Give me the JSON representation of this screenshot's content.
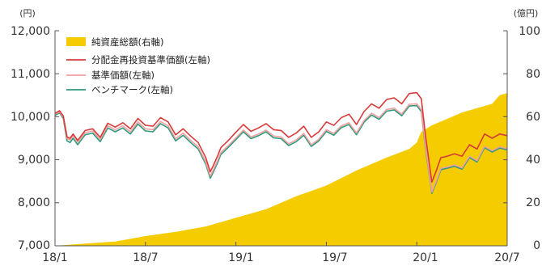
{
  "chart_data": {
    "type": "line",
    "title": "",
    "left_axis": {
      "unit": "(円)",
      "range": [
        7000,
        12000
      ],
      "ticks": [
        "12,000",
        "11,000",
        "10,000",
        "9,000",
        "8,000",
        "7,000"
      ]
    },
    "right_axis": {
      "unit": "(億円)",
      "range": [
        0,
        100
      ],
      "ticks": [
        "100",
        "80",
        "60",
        "40",
        "20",
        "0"
      ]
    },
    "x_ticks": [
      "18/1",
      "18/7",
      "19/1",
      "19/7",
      "20/1",
      "20/7"
    ],
    "x_range": [
      "2018-01",
      "2020-07"
    ],
    "legend_placement": "top-left",
    "grid": false,
    "legend": [
      {
        "label": "純資産総額(右軸)",
        "color": "#f5cc00",
        "kind": "box"
      },
      {
        "label": "分配金再投資基準価額(左軸)",
        "color": "#d83a3a",
        "kind": "line"
      },
      {
        "label": "基準価額(左軸)",
        "color": "#f0a0a0",
        "kind": "line"
      },
      {
        "label": "ベンチマーク(左軸)",
        "color": "#2e9a7e",
        "kind": "line"
      }
    ],
    "series": [
      {
        "name": "分配金再投資基準価額(左軸)",
        "axis": "left",
        "x": [
          0,
          0.3,
          0.55,
          0.8,
          1.0,
          1.2,
          1.5,
          2.0,
          2.5,
          3.0,
          3.5,
          4.0,
          4.5,
          5.0,
          5.5,
          6.0,
          6.5,
          7.0,
          7.5,
          8.0,
          8.5,
          9.0,
          9.5,
          10.0,
          10.3,
          10.5,
          10.8,
          11.0,
          11.5,
          12.0,
          12.5,
          13.0,
          13.5,
          14.0,
          14.5,
          15.0,
          15.5,
          16.0,
          16.5,
          17.0,
          17.5,
          18.0,
          18.5,
          19.0,
          19.5,
          20.0,
          20.5,
          21.0,
          21.5,
          22.0,
          22.5,
          23.0,
          23.5,
          24.0,
          24.3,
          24.6,
          25.0,
          25.3,
          25.6,
          26.0,
          26.5,
          27.0,
          27.5,
          28.0,
          28.5,
          29.0,
          29.5,
          30.0
        ],
        "y": [
          10080,
          10140,
          10020,
          9530,
          9500,
          9600,
          9450,
          9680,
          9720,
          9520,
          9850,
          9760,
          9860,
          9720,
          9960,
          9800,
          9780,
          9980,
          9880,
          9580,
          9720,
          9550,
          9400,
          9050,
          8720,
          8860,
          9100,
          9280,
          9450,
          9640,
          9820,
          9660,
          9740,
          9840,
          9700,
          9680,
          9520,
          9620,
          9780,
          9520,
          9650,
          9880,
          9800,
          9980,
          10060,
          9820,
          10120,
          10300,
          10200,
          10400,
          10440,
          10300,
          10540,
          10560,
          10420,
          9500,
          8480,
          8750,
          9050,
          9080,
          9140,
          9080,
          9350,
          9250,
          9600,
          9500,
          9600,
          9560
        ]
      },
      {
        "name": "基準価額(左軸)",
        "axis": "left",
        "x": [
          0,
          0.3,
          0.55,
          0.8,
          1.0,
          1.2,
          1.5,
          2.0,
          2.5,
          3.0,
          3.5,
          4.0,
          4.5,
          5.0,
          5.5,
          6.0,
          6.5,
          7.0,
          7.5,
          8.0,
          8.5,
          9.0,
          9.5,
          10.0,
          10.3,
          10.5,
          10.8,
          11.0,
          11.5,
          12.0,
          12.5,
          13.0,
          13.5,
          14.0,
          14.5,
          15.0,
          15.5,
          16.0,
          16.5,
          17.0,
          17.5,
          18.0,
          18.5,
          19.0,
          19.5,
          20.0,
          20.5,
          21.0,
          21.5,
          22.0,
          22.5,
          23.0,
          23.5,
          24.0,
          24.3,
          24.6,
          25.0,
          25.3,
          25.6,
          26.0,
          26.5,
          27.0,
          27.5,
          28.0,
          28.5,
          29.0,
          29.5,
          30.0
        ],
        "y": [
          10060,
          10110,
          9990,
          9500,
          9460,
          9560,
          9410,
          9630,
          9670,
          9470,
          9790,
          9700,
          9790,
          9650,
          9880,
          9720,
          9700,
          9890,
          9790,
          9490,
          9620,
          9450,
          9300,
          8950,
          8620,
          8760,
          8990,
          9170,
          9330,
          9510,
          9690,
          9530,
          9600,
          9690,
          9550,
          9530,
          9370,
          9460,
          9610,
          9350,
          9480,
          9700,
          9610,
          9790,
          9860,
          9620,
          9910,
          10080,
          9980,
          10170,
          10200,
          10060,
          10290,
          10300,
          10160,
          9250,
          8250,
          8510,
          8800,
          8830,
          8880,
          8810,
          9080,
          8980,
          9310,
          9210,
          9300,
          9260
        ]
      },
      {
        "name": "ベンチマーク(左軸)",
        "axis": "left",
        "x": [
          0,
          0.3,
          0.55,
          0.8,
          1.0,
          1.2,
          1.5,
          2.0,
          2.5,
          3.0,
          3.5,
          4.0,
          4.5,
          5.0,
          5.5,
          6.0,
          6.5,
          7.0,
          7.5,
          8.0,
          8.5,
          9.0,
          9.5,
          10.0,
          10.3,
          10.5,
          10.8,
          11.0,
          11.5,
          12.0,
          12.5,
          13.0,
          13.5,
          14.0,
          14.5,
          15.0,
          15.5,
          16.0,
          16.5,
          17.0,
          17.5,
          18.0,
          18.5,
          19.0,
          19.5,
          20.0,
          20.5,
          21.0,
          21.5,
          22.0,
          22.5,
          23.0,
          23.5,
          24.0,
          24.3,
          24.6,
          25.0,
          25.3,
          25.6,
          26.0,
          26.5,
          27.0,
          27.5,
          28.0,
          28.5,
          29.0,
          29.5,
          30.0
        ],
        "y": [
          10030,
          10090,
          9960,
          9440,
          9400,
          9500,
          9350,
          9580,
          9620,
          9420,
          9740,
          9650,
          9740,
          9600,
          9830,
          9670,
          9650,
          9840,
          9740,
          9440,
          9570,
          9400,
          9250,
          8900,
          8570,
          8710,
          8940,
          9120,
          9290,
          9470,
          9650,
          9490,
          9560,
          9650,
          9510,
          9490,
          9330,
          9420,
          9570,
          9310,
          9440,
          9660,
          9570,
          9750,
          9820,
          9580,
          9870,
          10040,
          9940,
          10130,
          10160,
          10020,
          10250,
          10260,
          10120,
          9210,
          8220,
          8480,
          8770,
          8800,
          8850,
          8780,
          9050,
          8950,
          9280,
          9180,
          9270,
          9230
        ]
      },
      {
        "name": "純資産総額(右軸)",
        "axis": "right",
        "kind": "area",
        "x": [
          0,
          2,
          4,
          6,
          8,
          10,
          12,
          14,
          16,
          18,
          20,
          22,
          23.5,
          24,
          24.3,
          25,
          26,
          27,
          28,
          29,
          29.5,
          30
        ],
        "y": [
          0,
          1,
          2,
          4.5,
          6.5,
          9,
          13,
          17,
          23,
          28,
          35,
          41,
          45,
          48,
          53,
          56,
          59,
          62,
          64,
          66,
          70,
          71
        ]
      }
    ]
  }
}
